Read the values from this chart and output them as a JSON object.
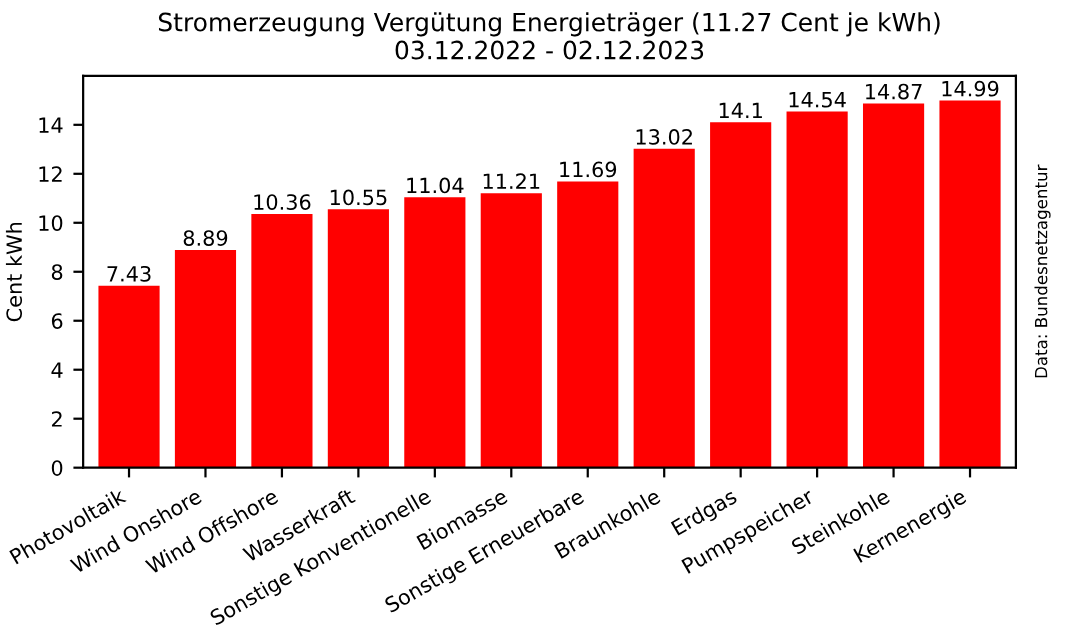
{
  "chart_data": {
    "type": "bar",
    "title": "Stromerzeugung Vergütung Energieträger (11.27 Cent je kWh)\n03.12.2022 - 02.12.2023",
    "ylabel": "Cent kWh",
    "categories": [
      "Photovoltaik",
      "Wind Onshore",
      "Wind Offshore",
      "Wasserkraft",
      "Sonstige Konventionelle",
      "Biomasse",
      "Sonstige Erneuerbare",
      "Braunkohle",
      "Erdgas",
      "Pumpspeicher",
      "Steinkohle",
      "Kernenergie"
    ],
    "values": [
      7.43,
      8.89,
      10.36,
      10.55,
      11.04,
      11.21,
      11.69,
      13.02,
      14.1,
      14.54,
      14.87,
      14.99
    ],
    "color": "#ff0000",
    "ylim": [
      0,
      16
    ],
    "yticks": [
      0,
      2,
      4,
      6,
      8,
      10,
      12,
      14
    ],
    "data_labels": true,
    "grid": false,
    "legend": false,
    "annotations": [
      "Data: Bundesnetzagentur"
    ]
  }
}
